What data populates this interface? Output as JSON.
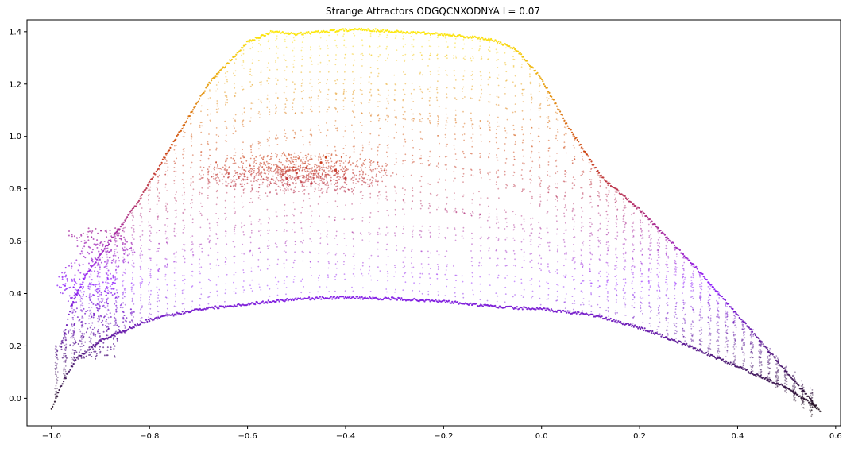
{
  "chart_data": {
    "type": "scatter",
    "title": "Strange Attractors     ODGQCNXODNYA    L= 0.07",
    "xlabel": "",
    "ylabel": "",
    "xlim": [
      -1.05,
      0.61
    ],
    "ylim": [
      -0.105,
      1.445
    ],
    "xticks": [
      -1.0,
      -0.8,
      -0.6,
      -0.4,
      -0.2,
      0.0,
      0.2,
      0.4,
      0.6
    ],
    "xtick_labels": [
      "−1.0",
      "−0.8",
      "−0.6",
      "−0.4",
      "−0.2",
      "0.0",
      "0.2",
      "0.4",
      "0.6"
    ],
    "yticks": [
      0.0,
      0.2,
      0.4,
      0.6,
      0.8,
      1.0,
      1.2,
      1.4
    ],
    "ytick_labels": [
      "0.0",
      "0.2",
      "0.4",
      "0.6",
      "0.8",
      "1.0",
      "1.2",
      "1.4"
    ],
    "grid": false,
    "legend": "none",
    "colormap": "gnuplot",
    "colormap_stops": [
      "#1a0a14",
      "#8a14ff",
      "#c83200",
      "#ffee00"
    ],
    "color_by": "y",
    "series": [
      {
        "points": {
          "x": [
            -1.0,
            -0.98,
            -0.95,
            -0.9,
            -0.8,
            -0.7,
            -0.6,
            -0.5,
            -0.4,
            -0.3,
            -0.2,
            -0.1,
            0.0,
            0.1,
            0.2,
            0.3,
            0.4,
            0.5,
            0.55,
            0.57,
            -0.98,
            -0.96,
            -0.93,
            -0.88,
            -0.82,
            -0.75,
            -0.68,
            -0.6,
            -0.55,
            -0.5,
            -0.45,
            -0.37,
            -0.3,
            -0.2,
            -0.1,
            -0.05,
            0.0,
            0.05,
            0.12,
            0.2,
            0.3,
            0.4,
            0.5,
            0.56,
            -0.5,
            -0.48,
            -0.45,
            -0.42,
            -0.4,
            -0.47,
            -0.52,
            -0.44
          ],
          "y": [
            -0.04,
            0.05,
            0.15,
            0.22,
            0.3,
            0.34,
            0.36,
            0.38,
            0.385,
            0.38,
            0.37,
            0.35,
            0.34,
            0.32,
            0.27,
            0.2,
            0.12,
            0.04,
            -0.02,
            -0.05,
            0.2,
            0.35,
            0.47,
            0.6,
            0.76,
            0.98,
            1.2,
            1.36,
            1.4,
            1.39,
            1.4,
            1.41,
            1.4,
            1.39,
            1.37,
            1.33,
            1.22,
            1.05,
            0.85,
            0.72,
            0.53,
            0.32,
            0.1,
            -0.03,
            0.86,
            0.88,
            0.9,
            0.87,
            0.84,
            0.82,
            0.84,
            0.92
          ]
        }
      }
    ]
  }
}
